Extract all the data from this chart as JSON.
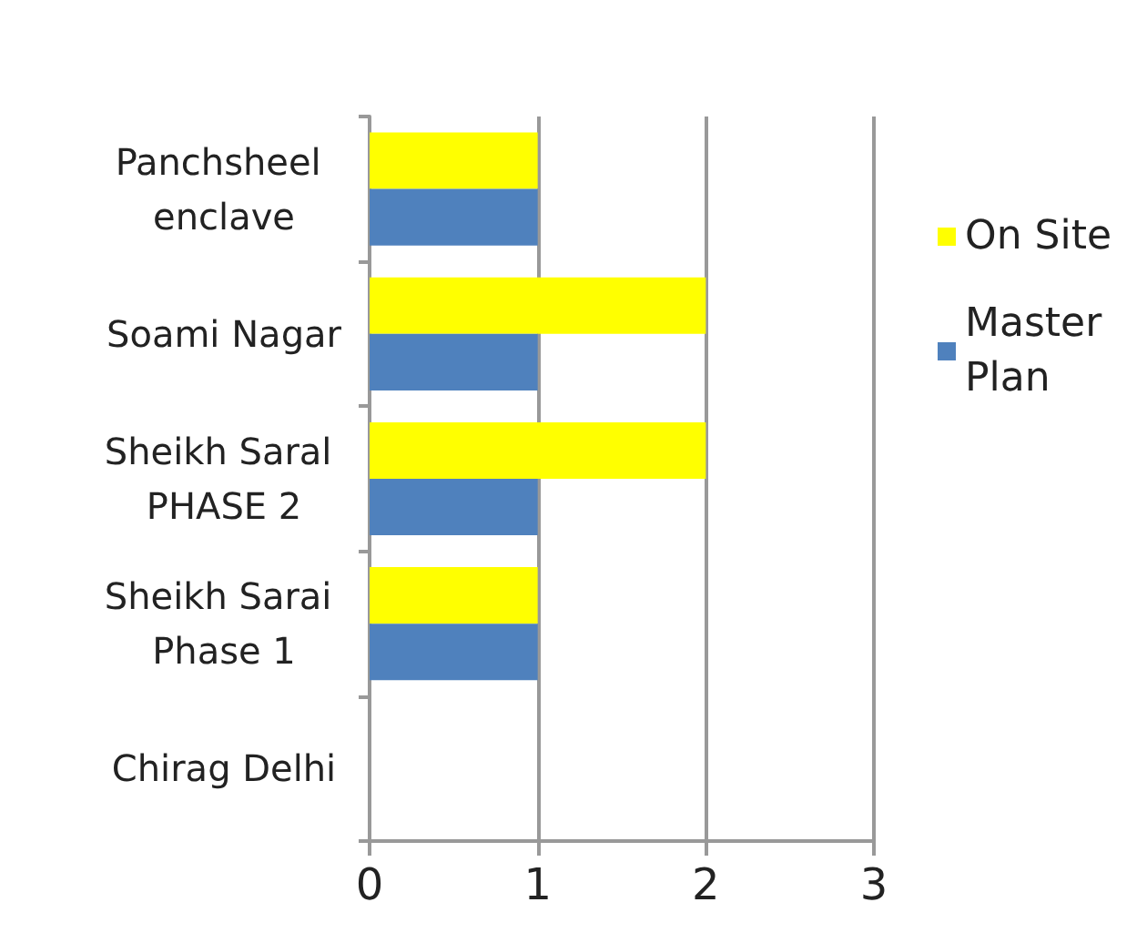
{
  "chart_data": {
    "type": "bar",
    "orientation": "horizontal",
    "categories": [
      "Panchsheel enclave",
      "Soami Nagar",
      "Sheikh Saral PHASE 2",
      "Sheikh Sarai Phase 1",
      "Chirag Delhi"
    ],
    "series": [
      {
        "name": "On Site",
        "color": "#ffff00",
        "values": [
          1,
          2,
          2,
          1,
          0
        ]
      },
      {
        "name": "Master Plan",
        "color": "#4f81bd",
        "values": [
          1,
          1,
          1,
          1,
          0
        ]
      }
    ],
    "xlim": [
      0,
      3
    ],
    "xticks": [
      0,
      1,
      2,
      3
    ],
    "grid": "x",
    "legend": "right"
  }
}
